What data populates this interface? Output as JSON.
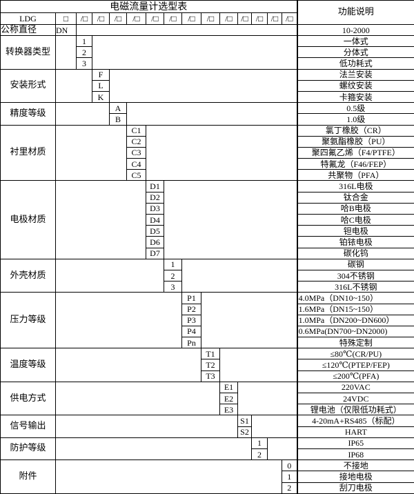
{
  "title": "电磁流量计选型表",
  "function_header": "功能说明",
  "model_row": {
    "prefix": "LDG",
    "slots": [
      "□",
      "/□",
      "/□",
      "/□",
      "/□",
      "/□",
      "/□",
      "/□",
      "/□",
      "/□",
      "/□",
      "/□",
      "/□",
      "/□"
    ]
  },
  "nominal_diameter": {
    "label": "公称直径",
    "code": "DN",
    "function": "10-2000"
  },
  "sections": [
    {
      "label": "转换器类型",
      "codes": [
        "1",
        "2",
        "3"
      ],
      "functions": [
        "一体式",
        "分体式",
        "低功耗式"
      ]
    },
    {
      "label": "安装形式",
      "codes": [
        "F",
        "L",
        "K"
      ],
      "functions": [
        "法兰安装",
        "螺纹安装",
        "卡箍安装"
      ]
    },
    {
      "label": "精度等级",
      "codes": [
        "A",
        "B"
      ],
      "functions": [
        "0.5级",
        "1.0级"
      ]
    },
    {
      "label": "衬里材质",
      "codes": [
        "C1",
        "C2",
        "C3",
        "C4",
        "C5"
      ],
      "functions": [
        "氯丁橡胶（CR）",
        "聚氨酯橡胶（PU）",
        "聚四氟乙烯（F4/PTFE）",
        "特氟龙（F46/FEP）",
        "共聚物（PFA）"
      ]
    },
    {
      "label": "电极材质",
      "codes": [
        "D1",
        "D2",
        "D3",
        "D4",
        "D5",
        "D6",
        "D7"
      ],
      "functions": [
        "316L电极",
        "钛合金",
        "哈B电极",
        "哈C电极",
        "钽电极",
        "铂铱电极",
        "碳化钨"
      ]
    },
    {
      "label": "外壳材质",
      "codes": [
        "1",
        "2",
        "3"
      ],
      "functions": [
        "碳钢",
        "304不锈钢",
        "316L不锈钢"
      ]
    },
    {
      "label": "压力等级",
      "codes": [
        "P1",
        "P2",
        "P3",
        "P4",
        "Pn"
      ],
      "functions": [
        "4.0MPa（DN10~150）",
        "1.6MPa（DN15~150）",
        "1.0MPa（DN200~DN600）",
        "0.6MPa(DN700~DN2000)",
        "特殊定制"
      ]
    },
    {
      "label": "温度等级",
      "codes": [
        "T1",
        "T2",
        "T3"
      ],
      "functions": [
        "≤80℃(CR/PU)",
        "≤120℃(PTEP/FEP)",
        "≤200℃(PFA)"
      ]
    },
    {
      "label": "供电方式",
      "codes": [
        "E1",
        "E2",
        "E3"
      ],
      "functions": [
        "220VAC",
        "24VDC",
        "锂电池（仅限低功耗式）"
      ]
    },
    {
      "label": "信号输出",
      "codes": [
        "S1",
        "S2"
      ],
      "functions": [
        "4-20mA+RS485（标配）",
        "HART"
      ]
    },
    {
      "label": "防护等级",
      "codes": [
        "1",
        "2"
      ],
      "functions": [
        "IP65",
        "IP68"
      ]
    },
    {
      "label": "附件",
      "codes": [
        "0",
        "1",
        "2"
      ],
      "functions": [
        "不接地",
        "接地电极",
        "刮刀电极"
      ]
    }
  ]
}
